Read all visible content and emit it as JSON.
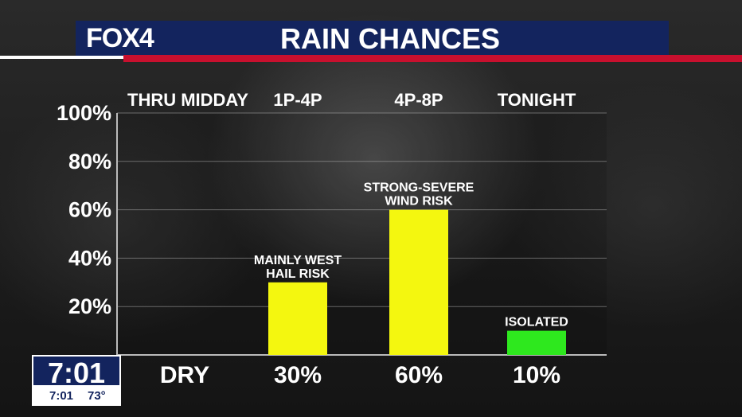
{
  "header": {
    "logo": "FOX4",
    "title": "RAIN CHANCES"
  },
  "clock": {
    "time": "7:01",
    "small_time": "7:01",
    "temp": "73°"
  },
  "colors": {
    "header_blue": "#13245e",
    "accent_red": "#c8102e",
    "bar_yellow": "#f4f70f",
    "bar_green": "#2ee81e"
  },
  "chart_data": {
    "type": "bar",
    "title": "RAIN CHANCES",
    "categories": [
      "THRU MIDDAY",
      "1P-4P",
      "4P-8P",
      "TONIGHT"
    ],
    "values": [
      0,
      30,
      60,
      10
    ],
    "value_labels": [
      "DRY",
      "30%",
      "60%",
      "10%"
    ],
    "annotations": [
      [],
      [
        "MAINLY WEST",
        "HAIL RISK"
      ],
      [
        "STRONG-SEVERE",
        "WIND RISK"
      ],
      [
        "ISOLATED"
      ]
    ],
    "bar_colors": [
      "#f4f70f",
      "#f4f70f",
      "#f4f70f",
      "#2ee81e"
    ],
    "yticks": [
      20,
      40,
      60,
      80,
      100
    ],
    "ytick_labels": [
      "20%",
      "40%",
      "60%",
      "80%",
      "100%"
    ],
    "ylim": [
      0,
      100
    ],
    "xlabel": "",
    "ylabel": "",
    "grid": true
  }
}
